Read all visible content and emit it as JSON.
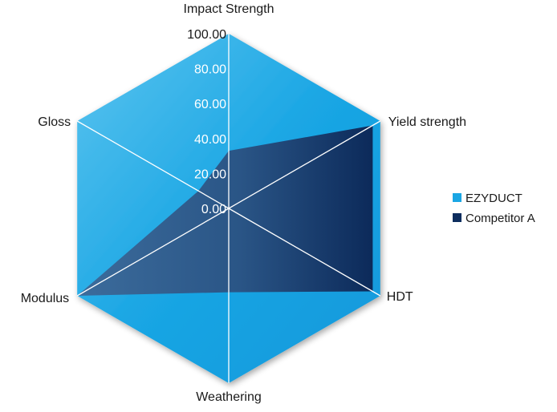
{
  "chart_data": {
    "type": "radar",
    "axes": [
      "Impact Strength",
      "Yield strength",
      "HDT",
      "Weathering",
      "Modulus",
      "Gloss"
    ],
    "rlim": [
      0,
      100
    ],
    "ticks": [
      "0.00",
      "20.00",
      "40.00",
      "60.00",
      "80.00",
      "100.00"
    ],
    "legend_position": "right",
    "series": [
      {
        "name": "EZYDUCT",
        "color": "#1aa6e4",
        "values": [
          100,
          100,
          100,
          100,
          100,
          100
        ]
      },
      {
        "name": "Competitor A",
        "color": "#0d2d5e",
        "values": [
          33,
          95,
          95,
          48,
          100,
          20
        ]
      }
    ]
  }
}
